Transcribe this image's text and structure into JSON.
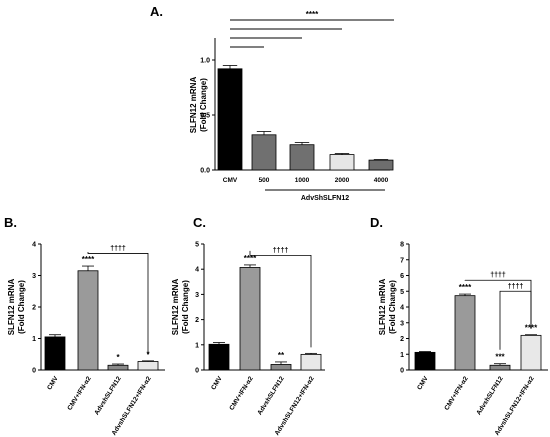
{
  "chart_data": [
    {
      "panel": "A.",
      "type": "bar",
      "ylabel": "SLFN12 mRNA (Fold Change)",
      "ylabel_lines": [
        "SLFN12 mRNA",
        "(Fold Change)"
      ],
      "xlabel": "AdvShSLFN12",
      "ylim": [
        0,
        1.2
      ],
      "yticks": [
        "0.0",
        "0.5",
        "1.0"
      ],
      "yticks_values": [
        0,
        0.5,
        1.0
      ],
      "categories": [
        "CMV",
        "500",
        "1000",
        "2000",
        "4000"
      ],
      "values": [
        0.92,
        0.32,
        0.23,
        0.14,
        0.09
      ],
      "errors": [
        0.03,
        0.03,
        0.02,
        0.01,
        0.005
      ],
      "colors": [
        "#000000",
        "#707070",
        "#707070",
        "#e6e6e6",
        "#6e6e6e"
      ],
      "annotations": [
        {
          "text": "****",
          "from": 0,
          "to": 4,
          "level": 4
        },
        {
          "text": "",
          "from": 0,
          "to": 3,
          "level": 3
        },
        {
          "text": "",
          "from": 0,
          "to": 2,
          "level": 2
        },
        {
          "text": "",
          "from": 0,
          "to": 1,
          "level": 1
        }
      ]
    },
    {
      "panel": "B.",
      "type": "bar",
      "ylabel_lines": [
        "SLFN12 mRNA",
        "(Fold Change)"
      ],
      "ylim": [
        0,
        4
      ],
      "yticks": [
        "0",
        "1",
        "2",
        "3",
        "4"
      ],
      "yticks_values": [
        0,
        1,
        2,
        3,
        4
      ],
      "categories": [
        "CMV",
        "CMV+IFN-α2",
        "AdvshSLFN12",
        "AdvshSLFN12+IFN-α2"
      ],
      "values": [
        1.05,
        3.15,
        0.15,
        0.27
      ],
      "errors": [
        0.07,
        0.15,
        0.04,
        0.02
      ],
      "colors": [
        "#000000",
        "#9a9a9a",
        "#8a8a8a",
        "#e8e8e8"
      ],
      "stars": [
        "",
        "****",
        "*",
        "*"
      ],
      "brackets": [
        {
          "text": "††††",
          "from": 1,
          "to": 3,
          "y": 3.7
        }
      ]
    },
    {
      "panel": "C.",
      "type": "bar",
      "ylabel_lines": [
        "SLFN12 mRNA",
        "(Fold Change)"
      ],
      "ylim": [
        0,
        5
      ],
      "yticks": [
        "0",
        "1",
        "2",
        "3",
        "4",
        "5"
      ],
      "yticks_values": [
        0,
        1,
        2,
        3,
        4,
        5
      ],
      "categories": [
        "CMV",
        "CMV+IFN-α2",
        "AdvshSLFN12",
        "AdvshSLFN12+IFN-α2"
      ],
      "values": [
        1.02,
        4.07,
        0.22,
        0.62
      ],
      "errors": [
        0.07,
        0.1,
        0.1,
        0.04
      ],
      "colors": [
        "#000000",
        "#9a9a9a",
        "#8a8a8a",
        "#e8e8e8"
      ],
      "stars": [
        "",
        "****",
        "**",
        ""
      ],
      "brackets": [
        {
          "text": "††††",
          "from": 1,
          "to": 3,
          "y": 4.55
        }
      ]
    },
    {
      "panel": "D.",
      "type": "bar",
      "ylabel_lines": [
        "SLFN12 mRNA",
        "(Fold Change)"
      ],
      "ylim": [
        0,
        8
      ],
      "yticks": [
        "0",
        "1",
        "2",
        "3",
        "4",
        "5",
        "6",
        "7",
        "8"
      ],
      "yticks_values": [
        0,
        1,
        2,
        3,
        4,
        5,
        6,
        7,
        8
      ],
      "categories": [
        "CMV",
        "CMV+IFN-α2",
        "AdvshSLFN12",
        "AdvshSLFN12+IFN-α2"
      ],
      "values": [
        1.12,
        4.72,
        0.3,
        2.2
      ],
      "errors": [
        0.05,
        0.1,
        0.1,
        0.04
      ],
      "colors": [
        "#000000",
        "#9a9a9a",
        "#8a8a8a",
        "#e8e8e8"
      ],
      "stars": [
        "",
        "****",
        "***",
        "****"
      ],
      "brackets": [
        {
          "text": "††††",
          "from": 1,
          "to": 3,
          "y": 5.7
        },
        {
          "text": "††††",
          "from": 2,
          "to": 3,
          "y": 5.0
        }
      ]
    }
  ]
}
